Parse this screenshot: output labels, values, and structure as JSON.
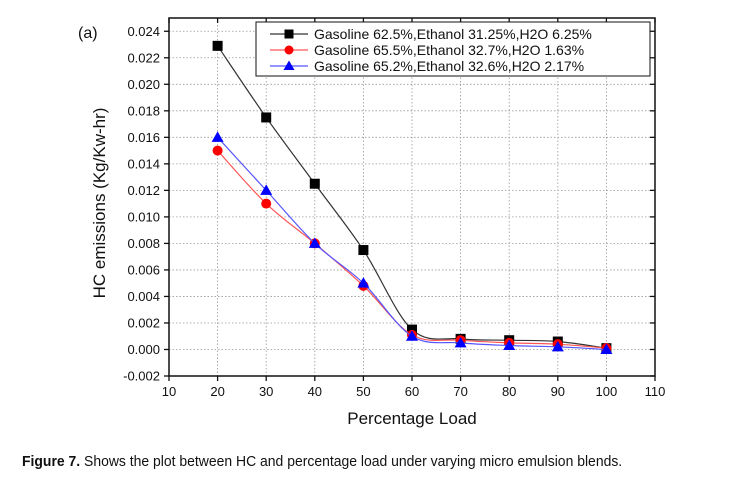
{
  "chart_data": {
    "type": "line",
    "panel_label": "(a)",
    "xlabel": "Percentage Load",
    "ylabel": "HC emissions (Kg/Kw-hr)",
    "xlim": [
      10,
      110
    ],
    "ylim": [
      -0.002,
      0.024
    ],
    "xticks": [
      "10",
      "20",
      "30",
      "40",
      "50",
      "60",
      "70",
      "80",
      "90",
      "100",
      "110"
    ],
    "yticks": [
      "-0.002",
      "0.000",
      "0.002",
      "0.004",
      "0.006",
      "0.008",
      "0.010",
      "0.012",
      "0.014",
      "0.016",
      "0.018",
      "0.020",
      "0.022",
      "0.024"
    ],
    "grid": true,
    "legend_position": "top-right",
    "x": [
      20,
      30,
      40,
      50,
      60,
      70,
      80,
      90,
      100
    ],
    "series": [
      {
        "name": "Gasoline 62.5%,Ethanol 31.25%,H2O 6.25%",
        "color": "#000000",
        "line_color": "#333333",
        "marker": "square",
        "values": [
          0.0229,
          0.0175,
          0.0125,
          0.0075,
          0.0015,
          0.0008,
          0.0007,
          0.0006,
          0.0001
        ]
      },
      {
        "name": "Gasoline 65.5%,Ethanol 32.7%,H2O 1.63%",
        "color": "#ff0000",
        "line_color": "#ff5555",
        "marker": "circle",
        "values": [
          0.015,
          0.011,
          0.008,
          0.0048,
          0.0011,
          0.0007,
          0.0005,
          0.0004,
          0.0001
        ]
      },
      {
        "name": "Gasoline 65.2%,Ethanol 32.6%,H2O 2.17%",
        "color": "#0000ff",
        "line_color": "#5555ff",
        "marker": "triangle",
        "values": [
          0.016,
          0.012,
          0.008,
          0.005,
          0.001,
          0.0005,
          0.0003,
          0.0002,
          0.0
        ]
      }
    ]
  },
  "caption": {
    "label": "Figure 7.",
    "text": " Shows the plot between HC and percentage load under varying micro emulsion blends."
  }
}
